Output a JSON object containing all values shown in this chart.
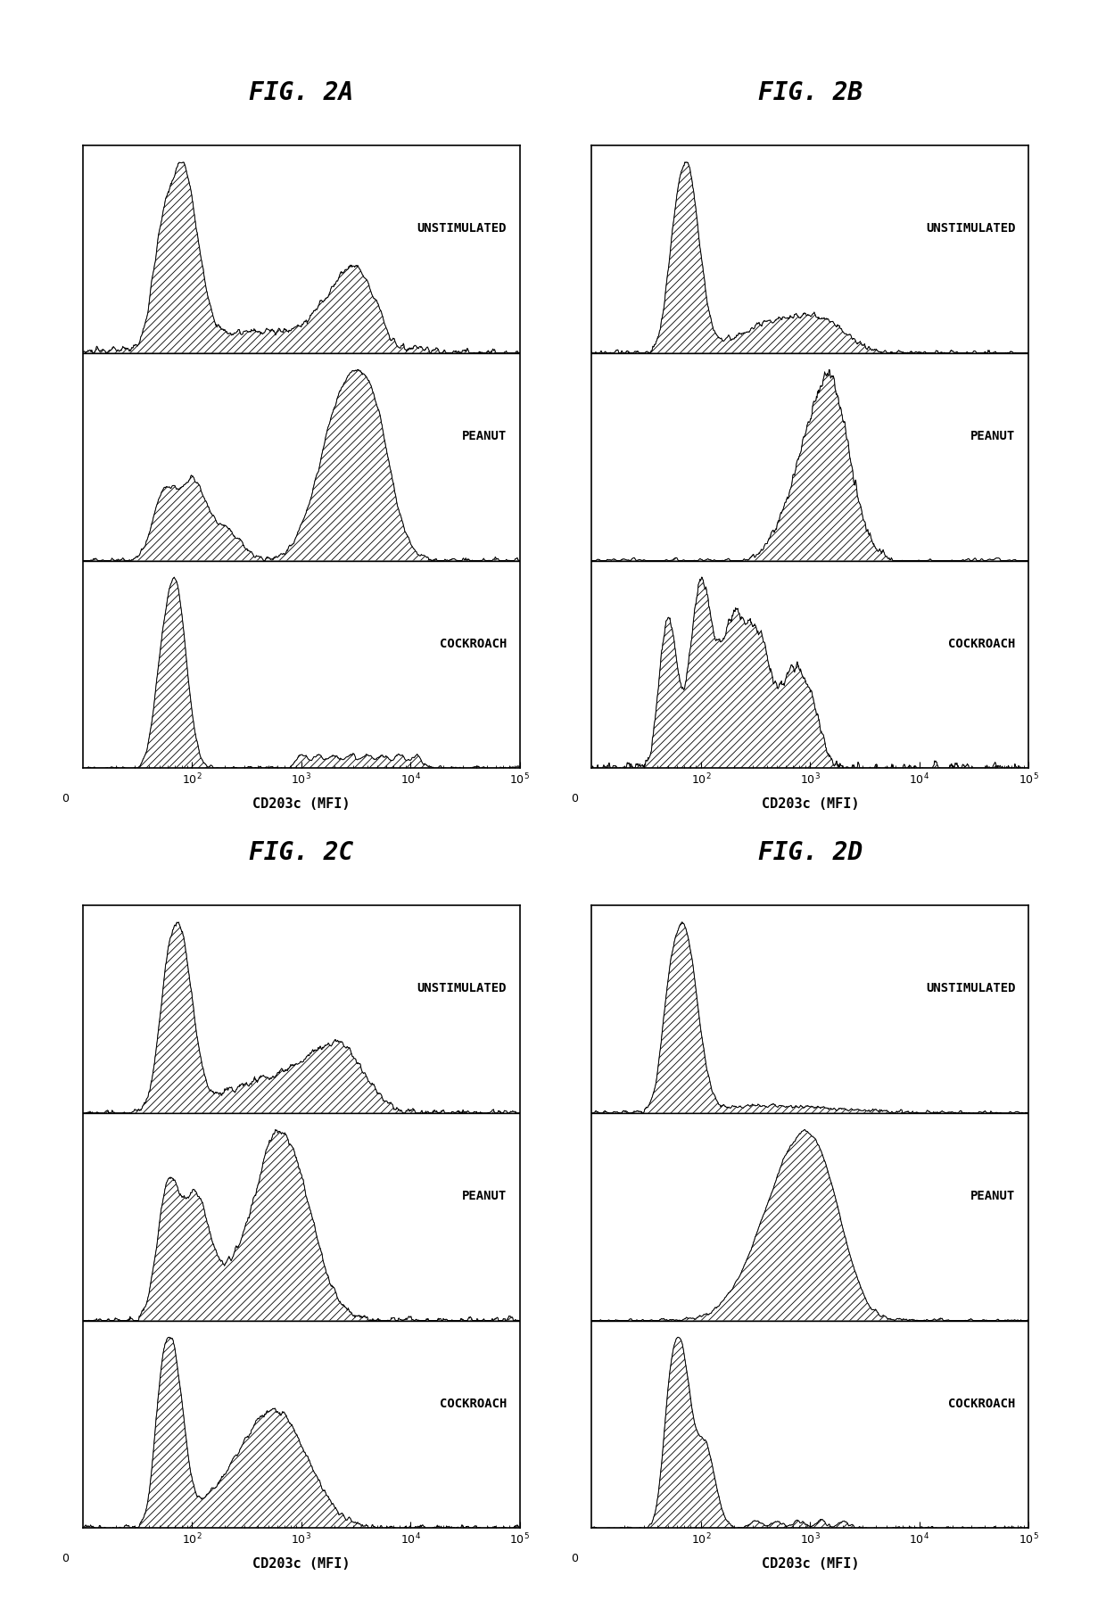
{
  "figures": [
    "FIG. 2A",
    "FIG. 2B",
    "FIG. 2C",
    "FIG. 2D"
  ],
  "labels": [
    "UNSTIMULATED",
    "PEANUT",
    "COCKROACH"
  ],
  "xlabel": "CD203c (MFI)",
  "bg_color": "#ffffff",
  "hatch_pattern": "////",
  "title_fontsize": 20,
  "label_fontsize": 10,
  "axis_fontsize": 9,
  "tick_labels": [
    "0",
    "10$^2$",
    "10$^3$",
    "10$^4$",
    "10$^5$"
  ]
}
